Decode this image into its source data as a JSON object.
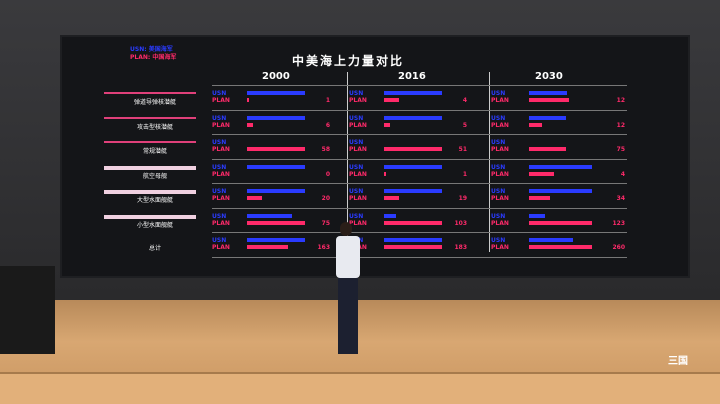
{
  "chart_data": {
    "type": "bar",
    "title": "中美海上力量对比",
    "legend": [
      "USN: 美国海军",
      "PLAN: 中国海军"
    ],
    "series_names": [
      "USN",
      "PLAN"
    ],
    "colors": {
      "USN": "#2a3bff",
      "PLAN": "#ff2a6a"
    },
    "years": [
      "2000",
      "2016",
      "2030"
    ],
    "categories": [
      "弹道导弹核潜艇",
      "攻击型核潜艇",
      "常规潜艇",
      "航空母舰",
      "大型水面舰艇",
      "小型水面舰艇",
      "总计"
    ],
    "plan_values": {
      "2000": [
        1,
        6,
        58,
        0,
        20,
        75,
        163
      ],
      "2016": [
        4,
        5,
        51,
        1,
        19,
        103,
        183
      ],
      "2030": [
        12,
        12,
        75,
        4,
        34,
        123,
        260
      ]
    },
    "usn_bar_fraction": {
      "2000": [
        1,
        1,
        0,
        1,
        1,
        0.78,
        1
      ],
      "2016": [
        1,
        1,
        0,
        1,
        1,
        0.2,
        1
      ],
      "2030": [
        0.6,
        0.58,
        0,
        1,
        1,
        0.26,
        0.7
      ]
    },
    "plan_bar_fraction": {
      "2000": [
        0.02,
        0.1,
        1,
        0,
        0.25,
        1,
        0.7
      ],
      "2016": [
        0.25,
        0.1,
        1,
        0.03,
        0.25,
        1,
        1
      ],
      "2030": [
        0.64,
        0.2,
        0.58,
        0.4,
        0.34,
        1,
        1
      ]
    }
  },
  "watermark": "三国"
}
